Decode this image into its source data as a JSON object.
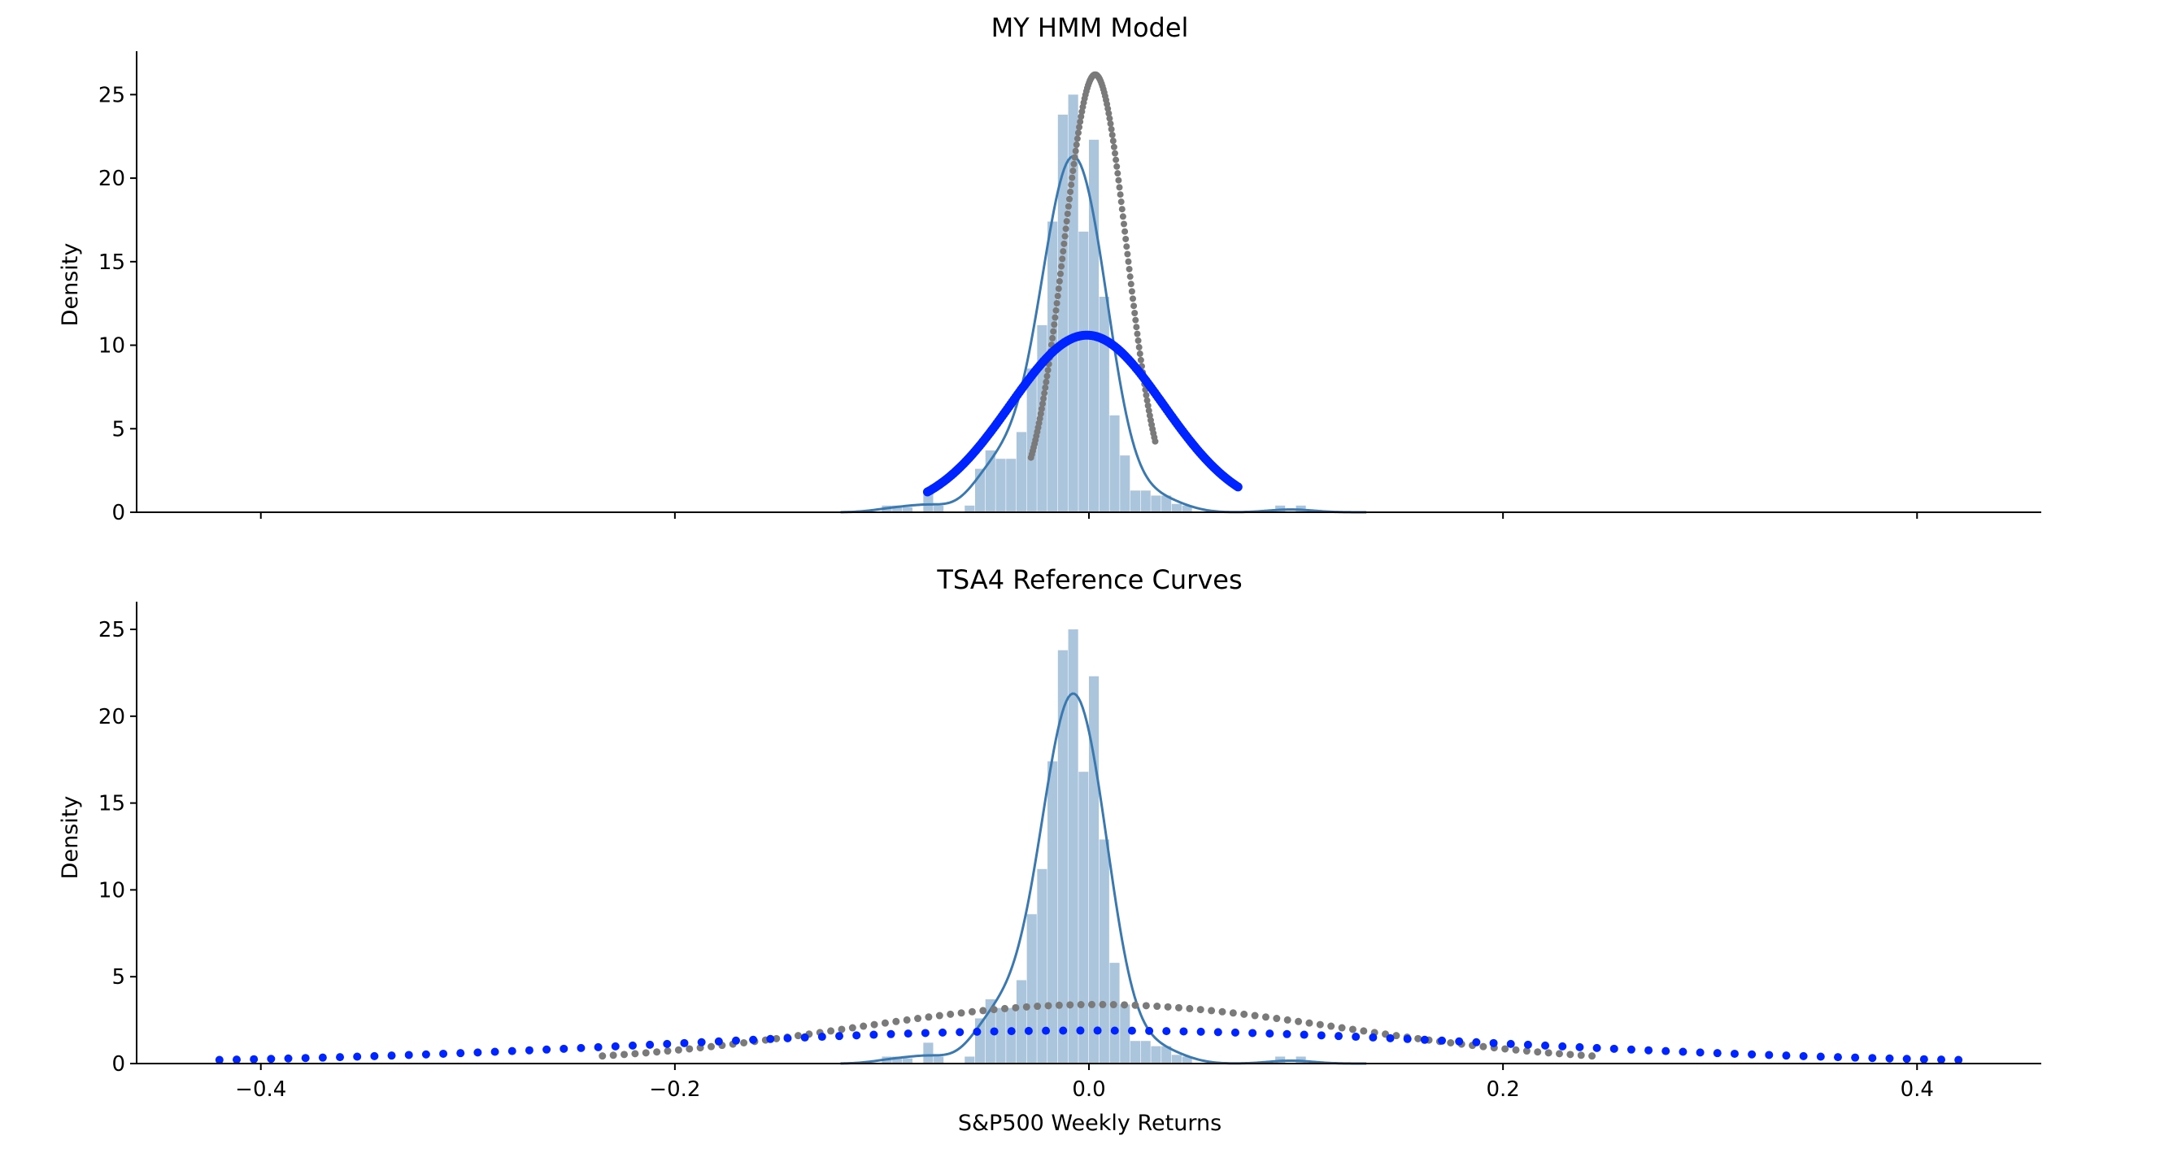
{
  "colors": {
    "hist": "#7ea6cb",
    "kde": "#3a78b0",
    "hmm_narrow": "#7a7a7a",
    "hmm_wide": "#0024ff",
    "axis": "#000000"
  },
  "figure": {
    "xlabel": "S&P500 Weekly Returns"
  },
  "chart_data": [
    {
      "type": "histogram",
      "title": "MY HMM Model",
      "ylabel": "Density",
      "xlabel": "",
      "xlim": [
        -0.46,
        0.46
      ],
      "ylim": [
        0,
        27.5
      ],
      "xticks": [
        -0.4,
        -0.2,
        0.0,
        0.2,
        0.4
      ],
      "xtick_labels_visible": false,
      "yticks": [
        0,
        5,
        10,
        15,
        20,
        25
      ],
      "grid": false,
      "histogram": {
        "bin_edges": [
          -0.1,
          -0.095,
          -0.09,
          -0.085,
          -0.08,
          -0.075,
          -0.07,
          -0.065,
          -0.06,
          -0.055,
          -0.05,
          -0.045,
          -0.04,
          -0.035,
          -0.03,
          -0.025,
          -0.02,
          -0.015,
          -0.01,
          -0.005,
          0.0,
          0.005,
          0.01,
          0.015,
          0.02,
          0.025,
          0.03,
          0.035,
          0.04,
          0.045,
          0.05,
          0.055,
          0.06,
          0.065,
          0.07,
          0.075,
          0.08,
          0.085,
          0.09,
          0.095,
          0.1,
          0.105,
          0.11,
          0.115
        ],
        "densities": [
          0.4,
          0.4,
          0.3,
          0.0,
          1.2,
          0.4,
          0.0,
          0.0,
          0.4,
          2.6,
          3.7,
          3.2,
          3.2,
          4.8,
          8.6,
          11.2,
          17.4,
          23.8,
          25.0,
          16.8,
          22.3,
          12.9,
          5.8,
          3.4,
          1.3,
          1.3,
          1.0,
          1.0,
          0.5,
          0.4,
          0.0,
          0.0,
          0.0,
          0.0,
          0.0,
          0.0,
          0.0,
          0.0,
          0.4,
          0.0,
          0.4,
          0.0,
          0.0
        ]
      },
      "kde": {
        "name": "KDE",
        "peak": 21.3,
        "peak_x": 0.002
      },
      "curves": [
        {
          "kind": "normal",
          "mu": 0.003,
          "peak": 26.2,
          "x_range": [
            -0.028,
            0.032
          ],
          "points": 140,
          "color_key": "hmm_narrow",
          "marker_size": 4
        },
        {
          "kind": "normal",
          "mu": -0.001,
          "peak": 10.6,
          "x_range": [
            -0.078,
            0.072
          ],
          "points": 180,
          "color_key": "hmm_wide",
          "marker_size": 5.5
        }
      ]
    },
    {
      "type": "histogram",
      "title": "TSA4 Reference Curves",
      "ylabel": "Density",
      "xlabel": "S&P500 Weekly Returns",
      "xlim": [
        -0.46,
        0.46
      ],
      "ylim": [
        0,
        26.5
      ],
      "xticks": [
        -0.4,
        -0.2,
        0.0,
        0.2,
        0.4
      ],
      "xtick_labels": [
        "−0.4",
        "−0.2",
        "0.0",
        "0.2",
        "0.4"
      ],
      "yticks": [
        0,
        5,
        10,
        15,
        20,
        25
      ],
      "grid": false,
      "histogram": {
        "bin_edges": [
          -0.1,
          -0.095,
          -0.09,
          -0.085,
          -0.08,
          -0.075,
          -0.07,
          -0.065,
          -0.06,
          -0.055,
          -0.05,
          -0.045,
          -0.04,
          -0.035,
          -0.03,
          -0.025,
          -0.02,
          -0.015,
          -0.01,
          -0.005,
          0.0,
          0.005,
          0.01,
          0.015,
          0.02,
          0.025,
          0.03,
          0.035,
          0.04,
          0.045,
          0.05,
          0.055,
          0.06,
          0.065,
          0.07,
          0.075,
          0.08,
          0.085,
          0.09,
          0.095,
          0.1,
          0.105,
          0.11,
          0.115
        ],
        "densities": [
          0.4,
          0.4,
          0.3,
          0.0,
          1.2,
          0.4,
          0.0,
          0.0,
          0.4,
          2.6,
          3.7,
          3.2,
          3.2,
          4.8,
          8.6,
          11.2,
          17.4,
          23.8,
          25.0,
          16.8,
          22.3,
          12.9,
          5.8,
          3.4,
          1.3,
          1.3,
          1.0,
          1.0,
          0.5,
          0.4,
          0.0,
          0.0,
          0.0,
          0.0,
          0.0,
          0.0,
          0.0,
          0.0,
          0.4,
          0.0,
          0.4,
          0.0,
          0.0
        ]
      },
      "kde": {
        "name": "KDE",
        "peak": 21.3,
        "peak_x": 0.002
      },
      "curves": [
        {
          "kind": "normal",
          "mu": 0.004,
          "peak": 3.4,
          "x_range": [
            -0.235,
            0.243
          ],
          "points": 92,
          "color_key": "hmm_narrow",
          "marker_size": 4.5
        },
        {
          "kind": "normal",
          "mu": 0.0,
          "peak": 1.9,
          "x_range": [
            -0.42,
            0.42
          ],
          "points": 102,
          "color_key": "hmm_wide",
          "marker_size": 5
        }
      ]
    }
  ]
}
